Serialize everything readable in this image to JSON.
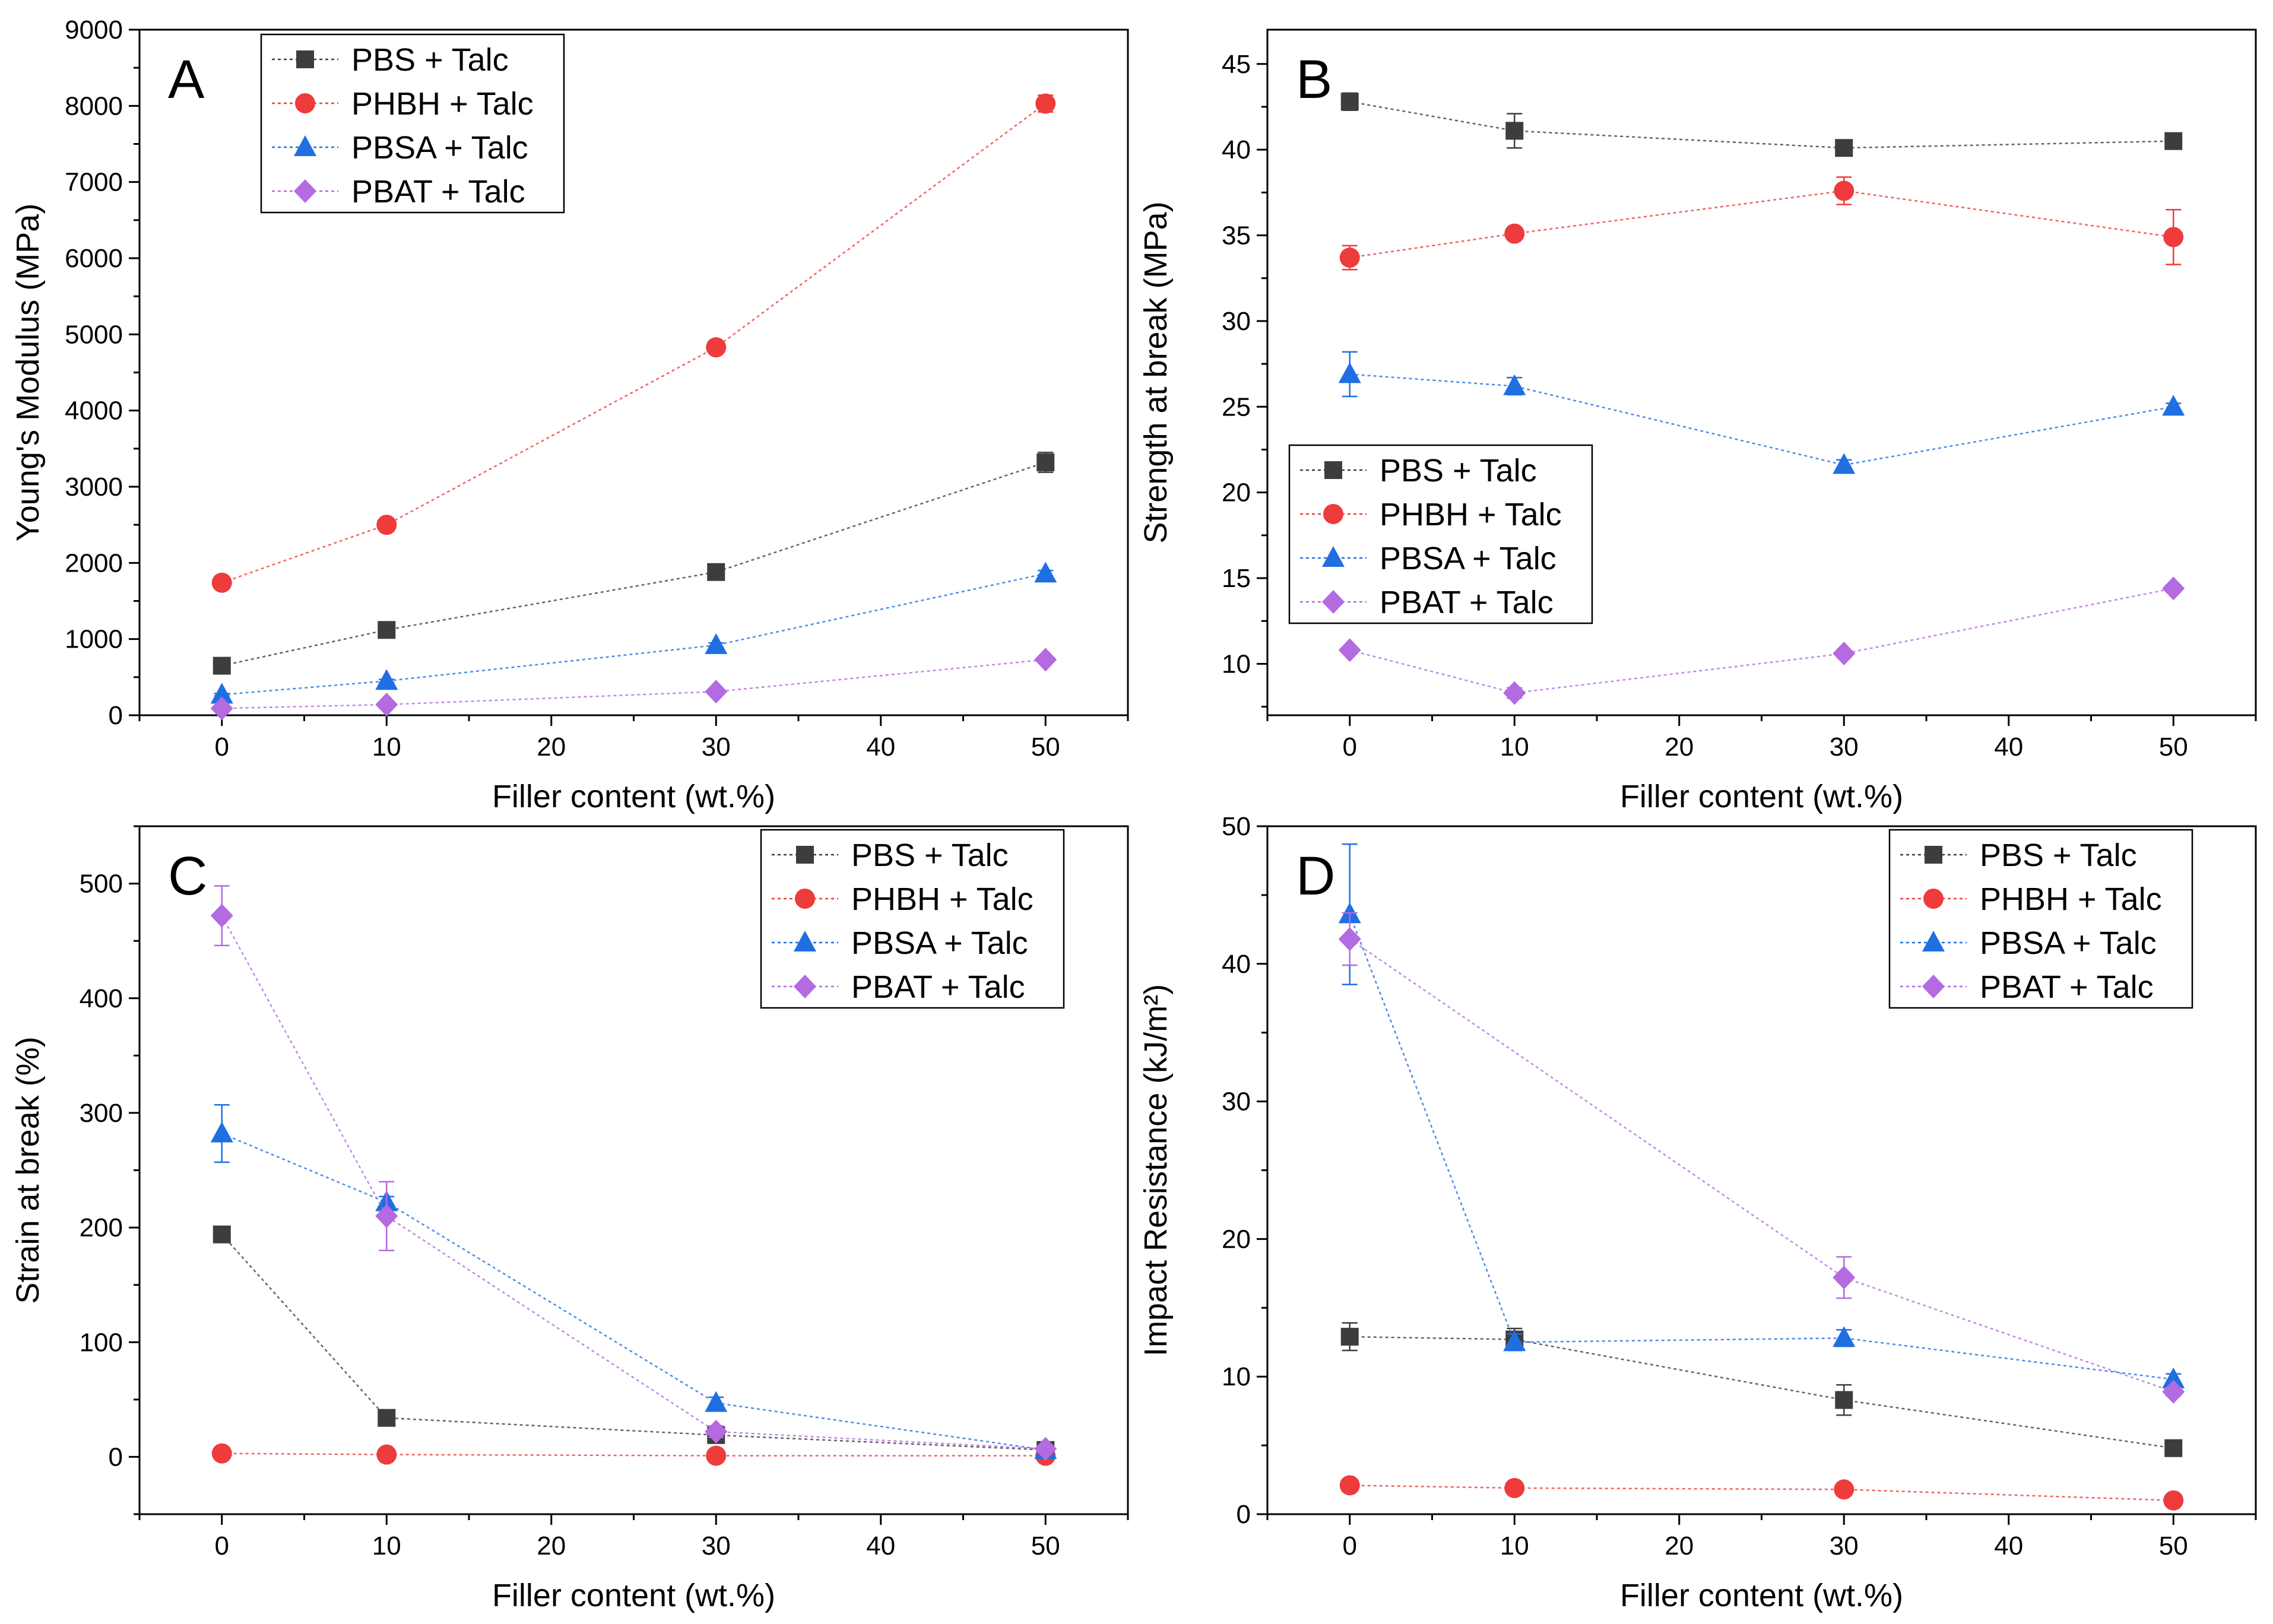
{
  "figure": {
    "layout": "2x2 grid of line/scatter plots with error bars"
  },
  "colors": {
    "PBS + Talc": "#3d3d3d",
    "PHBH + Talc": "#ee3b3b",
    "PBSA + Talc": "#1f6fe0",
    "PBAT + Talc": "#b46ae0"
  },
  "markers": {
    "PBS + Talc": "square",
    "PHBH + Talc": "circle",
    "PBSA + Talc": "triangle",
    "PBAT + Talc": "diamond"
  },
  "chart_data": [
    {
      "type": "line",
      "panel": "A",
      "title": "",
      "xlabel": "Filler content (wt.%)",
      "ylabel": "Young's Modulus (MPa)",
      "xlim": [
        -5,
        55
      ],
      "ylim": [
        0,
        9000
      ],
      "xticks": [
        0,
        10,
        20,
        30,
        40,
        50
      ],
      "yticks": [
        0,
        1000,
        2000,
        3000,
        4000,
        5000,
        6000,
        7000,
        8000,
        9000
      ],
      "grid": false,
      "legend_position": "top-left",
      "x": [
        0,
        10,
        30,
        50
      ],
      "series": [
        {
          "name": "PBS + Talc",
          "values": [
            650,
            1120,
            1880,
            3320
          ],
          "errors": [
            20,
            30,
            40,
            130
          ]
        },
        {
          "name": "PHBH + Talc",
          "values": [
            1740,
            2500,
            4830,
            8030
          ],
          "errors": [
            30,
            30,
            40,
            110
          ]
        },
        {
          "name": "PBSA + Talc",
          "values": [
            270,
            450,
            920,
            1860
          ],
          "errors": [
            15,
            20,
            30,
            40
          ]
        },
        {
          "name": "PBAT + Talc",
          "values": [
            90,
            140,
            310,
            730
          ],
          "errors": [
            10,
            10,
            20,
            30
          ]
        }
      ]
    },
    {
      "type": "line",
      "panel": "B",
      "title": "",
      "xlabel": "Filler content (wt.%)",
      "ylabel": "Strength at break (MPa)",
      "xlim": [
        -5,
        55
      ],
      "ylim": [
        7,
        47
      ],
      "xticks": [
        0,
        10,
        20,
        30,
        40,
        50
      ],
      "yticks": [
        10,
        15,
        20,
        25,
        30,
        35,
        40,
        45
      ],
      "grid": false,
      "legend_position": "center-left",
      "x": [
        0,
        10,
        30,
        50
      ],
      "series": [
        {
          "name": "PBS + Talc",
          "values": [
            42.8,
            41.1,
            40.1,
            40.5
          ],
          "errors": [
            0.5,
            1.0,
            0.3,
            0.3
          ]
        },
        {
          "name": "PHBH + Talc",
          "values": [
            33.7,
            35.1,
            37.6,
            34.9
          ],
          "errors": [
            0.7,
            0.3,
            0.8,
            1.6
          ]
        },
        {
          "name": "PBSA + Talc",
          "values": [
            26.9,
            26.2,
            21.6,
            25.0
          ],
          "errors": [
            1.3,
            0.5,
            0.3,
            0.2
          ]
        },
        {
          "name": "PBAT + Talc",
          "values": [
            10.8,
            8.3,
            10.6,
            14.4
          ],
          "errors": [
            0.2,
            0.3,
            0.2,
            0.2
          ]
        }
      ]
    },
    {
      "type": "line",
      "panel": "C",
      "title": "",
      "xlabel": "Filler content (wt.%)",
      "ylabel": "Strain at break (%)",
      "xlim": [
        -5,
        55
      ],
      "ylim": [
        -50,
        550
      ],
      "xticks": [
        0,
        10,
        20,
        30,
        40,
        50
      ],
      "yticks": [
        0,
        100,
        200,
        300,
        400,
        500
      ],
      "grid": false,
      "legend_position": "top-right",
      "x": [
        0,
        10,
        30,
        50
      ],
      "series": [
        {
          "name": "PBS + Talc",
          "values": [
            194,
            34,
            19,
            6
          ],
          "errors": [
            4,
            3,
            2,
            1
          ]
        },
        {
          "name": "PHBH + Talc",
          "values": [
            3,
            2,
            1,
            1
          ],
          "errors": [
            1,
            1,
            0.5,
            0.5
          ]
        },
        {
          "name": "PBSA + Talc",
          "values": [
            282,
            222,
            47,
            6
          ],
          "errors": [
            25,
            5,
            5,
            2
          ]
        },
        {
          "name": "PBAT + Talc",
          "values": [
            472,
            210,
            22,
            7
          ],
          "errors": [
            26,
            30,
            5,
            2
          ]
        }
      ]
    },
    {
      "type": "line",
      "panel": "D",
      "title": "",
      "xlabel": "Filler content (wt.%)",
      "ylabel": "Impact Resistance (kJ/m²)",
      "xlim": [
        -5,
        55
      ],
      "ylim": [
        0,
        50
      ],
      "xticks": [
        0,
        10,
        20,
        30,
        40,
        50
      ],
      "yticks": [
        0,
        10,
        20,
        30,
        40,
        50
      ],
      "grid": false,
      "legend_position": "top-right",
      "x": [
        0,
        10,
        30,
        50
      ],
      "series": [
        {
          "name": "PBS + Talc",
          "values": [
            12.9,
            12.7,
            8.3,
            4.8
          ],
          "errors": [
            1.0,
            0.8,
            1.1,
            0.2
          ]
        },
        {
          "name": "PHBH + Talc",
          "values": [
            2.1,
            1.9,
            1.8,
            1.0
          ],
          "errors": [
            0.2,
            0.2,
            0.2,
            0.1
          ]
        },
        {
          "name": "PBSA + Talc",
          "values": [
            43.6,
            12.5,
            12.8,
            9.8
          ],
          "errors": [
            5.1,
            0.6,
            0.6,
            0.4
          ]
        },
        {
          "name": "PBAT + Talc",
          "values": [
            41.8,
            null,
            17.2,
            8.9
          ],
          "errors": [
            1.9,
            0,
            1.5,
            0.3
          ]
        }
      ]
    }
  ]
}
